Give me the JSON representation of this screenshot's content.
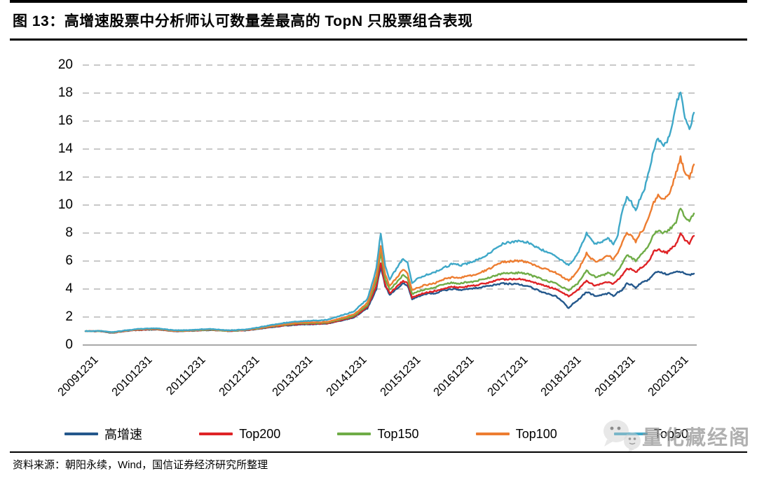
{
  "figure": {
    "title": "图 13：高增速股票中分析师认可数量差最高的 TopN 只股票组合表现",
    "source": "资料来源：朝阳永续，Wind，国信证券经济研究所整理",
    "watermark": "量化藏经阁"
  },
  "chart_data": {
    "type": "line",
    "title": "高增速股票中分析师认可数量差最高的TopN只股票组合表现",
    "x_unit": "month",
    "x_start": "2009-12-31",
    "x_end": "2021-04-30",
    "x_tick_labels": [
      "20091231",
      "20101231",
      "20111231",
      "20121231",
      "20131231",
      "20141231",
      "20151231",
      "20161231",
      "20171231",
      "20181231",
      "20191231",
      "20201231"
    ],
    "x_tick_month_index": [
      0,
      12,
      24,
      36,
      48,
      60,
      72,
      84,
      96,
      108,
      120,
      132
    ],
    "ylim": [
      0,
      20
    ],
    "y_ticks": [
      0,
      2,
      4,
      6,
      8,
      10,
      12,
      14,
      16,
      18,
      20
    ],
    "grid": "horizontal-dashed",
    "grid_color": "#C9C9C9",
    "axis_color": "#A8A8A8",
    "legend_position": "bottom",
    "series": [
      {
        "name": "高增速",
        "color": "#24588C",
        "values": [
          1.0,
          0.98,
          0.98,
          0.99,
          0.96,
          0.91,
          0.87,
          0.91,
          0.95,
          1.0,
          1.03,
          1.05,
          1.06,
          1.08,
          1.09,
          1.1,
          1.1,
          1.07,
          1.04,
          1.01,
          0.98,
          0.99,
          1.0,
          1.01,
          1.02,
          1.03,
          1.05,
          1.06,
          1.07,
          1.05,
          1.03,
          1.01,
          1.0,
          1.01,
          1.02,
          1.03,
          1.05,
          1.08,
          1.12,
          1.16,
          1.2,
          1.24,
          1.29,
          1.32,
          1.36,
          1.39,
          1.41,
          1.44,
          1.47,
          1.47,
          1.48,
          1.49,
          1.5,
          1.51,
          1.52,
          1.59,
          1.66,
          1.73,
          1.81,
          1.89,
          1.98,
          2.19,
          2.41,
          2.62,
          3.3,
          4.0,
          5.6,
          4.2,
          3.6,
          3.87,
          4.13,
          4.4,
          4.25,
          3.3,
          3.42,
          3.53,
          3.65,
          3.68,
          3.7,
          3.8,
          3.9,
          3.95,
          4.0,
          3.98,
          3.95,
          4.0,
          4.03,
          4.05,
          4.1,
          4.15,
          4.2,
          4.27,
          4.33,
          4.4,
          4.38,
          4.37,
          4.35,
          4.33,
          4.27,
          4.2,
          4.07,
          3.93,
          3.8,
          3.7,
          3.6,
          3.5,
          3.3,
          3.0,
          2.62,
          2.95,
          3.2,
          3.5,
          3.8,
          3.65,
          3.5,
          3.57,
          3.63,
          3.7,
          3.5,
          3.75,
          3.95,
          4.4,
          4.3,
          4.1,
          4.4,
          4.55,
          4.7,
          5.1,
          5.2,
          5.15,
          5.05,
          5.1,
          5.2,
          5.25,
          5.1,
          5.0,
          5.1
        ]
      },
      {
        "name": "Top200",
        "color": "#DF2326",
        "values": [
          1.0,
          0.99,
          0.98,
          1.0,
          0.97,
          0.92,
          0.88,
          0.92,
          0.96,
          1.01,
          1.04,
          1.06,
          1.08,
          1.1,
          1.11,
          1.12,
          1.12,
          1.09,
          1.05,
          1.02,
          0.99,
          1.0,
          1.01,
          1.02,
          1.03,
          1.04,
          1.06,
          1.08,
          1.09,
          1.06,
          1.04,
          1.02,
          1.01,
          1.02,
          1.03,
          1.05,
          1.07,
          1.1,
          1.14,
          1.19,
          1.23,
          1.27,
          1.32,
          1.35,
          1.39,
          1.42,
          1.45,
          1.47,
          1.5,
          1.5,
          1.51,
          1.52,
          1.53,
          1.54,
          1.55,
          1.62,
          1.7,
          1.77,
          1.85,
          1.93,
          2.02,
          2.24,
          2.47,
          2.7,
          3.45,
          4.2,
          5.9,
          4.3,
          3.7,
          4.0,
          4.3,
          4.6,
          4.4,
          3.4,
          3.52,
          3.63,
          3.75,
          3.8,
          3.85,
          3.95,
          4.05,
          4.1,
          4.15,
          4.12,
          4.1,
          4.18,
          4.21,
          4.25,
          4.32,
          4.38,
          4.45,
          4.53,
          4.62,
          4.7,
          4.7,
          4.7,
          4.7,
          4.72,
          4.66,
          4.6,
          4.5,
          4.4,
          4.3,
          4.2,
          4.1,
          4.0,
          3.83,
          3.67,
          3.5,
          3.7,
          3.9,
          4.25,
          4.6,
          4.4,
          4.25,
          4.33,
          4.42,
          4.55,
          4.35,
          4.65,
          5.0,
          5.5,
          5.38,
          5.2,
          5.5,
          5.7,
          6.0,
          6.7,
          6.85,
          6.7,
          6.6,
          6.9,
          7.2,
          8.0,
          7.5,
          7.3,
          7.8
        ]
      },
      {
        "name": "Top150",
        "color": "#6FAC47",
        "values": [
          1.0,
          0.99,
          0.99,
          1.0,
          0.97,
          0.93,
          0.89,
          0.93,
          0.97,
          1.02,
          1.05,
          1.07,
          1.1,
          1.12,
          1.13,
          1.14,
          1.14,
          1.11,
          1.07,
          1.03,
          1.0,
          1.01,
          1.02,
          1.03,
          1.04,
          1.05,
          1.07,
          1.09,
          1.1,
          1.07,
          1.05,
          1.03,
          1.02,
          1.03,
          1.04,
          1.06,
          1.08,
          1.12,
          1.16,
          1.21,
          1.25,
          1.3,
          1.35,
          1.38,
          1.42,
          1.46,
          1.49,
          1.52,
          1.55,
          1.55,
          1.56,
          1.57,
          1.58,
          1.59,
          1.6,
          1.67,
          1.75,
          1.83,
          1.92,
          2.0,
          2.1,
          2.33,
          2.58,
          2.85,
          3.65,
          4.6,
          6.6,
          4.7,
          3.95,
          4.3,
          4.65,
          5.0,
          4.75,
          3.65,
          3.78,
          3.89,
          4.0,
          4.05,
          4.1,
          4.22,
          4.33,
          4.39,
          4.45,
          4.42,
          4.4,
          4.48,
          4.51,
          4.55,
          4.63,
          4.72,
          4.8,
          4.9,
          5.0,
          5.1,
          5.12,
          5.14,
          5.15,
          5.16,
          5.1,
          5.05,
          4.93,
          4.82,
          4.7,
          4.6,
          4.5,
          4.4,
          4.23,
          4.07,
          3.9,
          4.15,
          4.4,
          4.85,
          5.3,
          5.05,
          4.85,
          4.93,
          5.02,
          5.2,
          4.95,
          5.3,
          5.8,
          6.4,
          6.25,
          6.0,
          6.4,
          6.7,
          7.2,
          7.9,
          8.2,
          8.0,
          8.1,
          8.4,
          8.8,
          9.8,
          9.1,
          8.9,
          9.4
        ]
      },
      {
        "name": "Top100",
        "color": "#ED7D31",
        "values": [
          1.0,
          0.99,
          0.99,
          1.01,
          0.98,
          0.94,
          0.9,
          0.94,
          0.98,
          1.03,
          1.06,
          1.09,
          1.12,
          1.14,
          1.15,
          1.16,
          1.16,
          1.13,
          1.09,
          1.05,
          1.02,
          1.03,
          1.04,
          1.04,
          1.05,
          1.07,
          1.09,
          1.11,
          1.12,
          1.09,
          1.07,
          1.05,
          1.03,
          1.04,
          1.06,
          1.07,
          1.09,
          1.13,
          1.18,
          1.23,
          1.28,
          1.33,
          1.38,
          1.42,
          1.46,
          1.5,
          1.53,
          1.57,
          1.6,
          1.61,
          1.62,
          1.62,
          1.63,
          1.64,
          1.65,
          1.73,
          1.82,
          1.9,
          2.0,
          2.1,
          2.2,
          2.45,
          2.72,
          3.0,
          3.9,
          4.9,
          7.1,
          5.0,
          4.2,
          4.6,
          5.0,
          5.4,
          5.1,
          3.9,
          4.05,
          4.18,
          4.3,
          4.35,
          4.4,
          4.55,
          4.7,
          4.78,
          4.85,
          4.82,
          4.8,
          4.9,
          4.95,
          5.0,
          5.13,
          5.27,
          5.4,
          5.57,
          5.75,
          5.9,
          5.95,
          5.98,
          6.0,
          6.02,
          5.96,
          5.9,
          5.77,
          5.63,
          5.5,
          5.4,
          5.3,
          5.2,
          5.0,
          4.8,
          4.6,
          4.9,
          5.3,
          5.9,
          6.55,
          6.2,
          5.95,
          6.1,
          6.25,
          6.4,
          6.1,
          6.6,
          7.4,
          8.0,
          7.8,
          7.4,
          8.0,
          8.4,
          9.2,
          10.2,
          10.7,
          10.4,
          10.6,
          11.2,
          12.3,
          13.4,
          12.3,
          11.9,
          12.9
        ]
      },
      {
        "name": "Top50",
        "color": "#3FA8C8",
        "values": [
          1.0,
          0.99,
          1.0,
          1.02,
          0.99,
          0.95,
          0.92,
          0.96,
          1.0,
          1.05,
          1.08,
          1.12,
          1.15,
          1.17,
          1.18,
          1.19,
          1.2,
          1.16,
          1.12,
          1.08,
          1.05,
          1.06,
          1.06,
          1.07,
          1.08,
          1.1,
          1.12,
          1.14,
          1.15,
          1.12,
          1.1,
          1.07,
          1.05,
          1.07,
          1.08,
          1.1,
          1.12,
          1.17,
          1.22,
          1.28,
          1.33,
          1.39,
          1.45,
          1.5,
          1.55,
          1.6,
          1.63,
          1.67,
          1.7,
          1.72,
          1.73,
          1.75,
          1.76,
          1.78,
          1.8,
          1.9,
          2.0,
          2.1,
          2.2,
          2.3,
          2.4,
          2.7,
          3.0,
          3.3,
          4.3,
          5.5,
          8.0,
          5.6,
          4.7,
          5.2,
          5.7,
          6.2,
          5.9,
          4.4,
          4.7,
          4.85,
          5.0,
          5.1,
          5.2,
          5.35,
          5.5,
          5.65,
          5.8,
          5.75,
          5.7,
          5.8,
          5.9,
          6.0,
          6.15,
          6.3,
          6.5,
          6.75,
          7.0,
          7.2,
          7.3,
          7.35,
          7.4,
          7.45,
          7.38,
          7.3,
          7.1,
          6.95,
          6.8,
          6.65,
          6.5,
          6.4,
          6.15,
          5.9,
          5.7,
          6.0,
          6.5,
          7.2,
          8.0,
          7.6,
          7.2,
          7.35,
          7.5,
          7.6,
          7.2,
          7.9,
          9.6,
          10.5,
          10.2,
          9.6,
          10.5,
          11.2,
          12.5,
          14.0,
          14.8,
          14.2,
          14.6,
          15.5,
          17.2,
          18.0,
          16.2,
          15.3,
          16.6
        ]
      }
    ]
  }
}
